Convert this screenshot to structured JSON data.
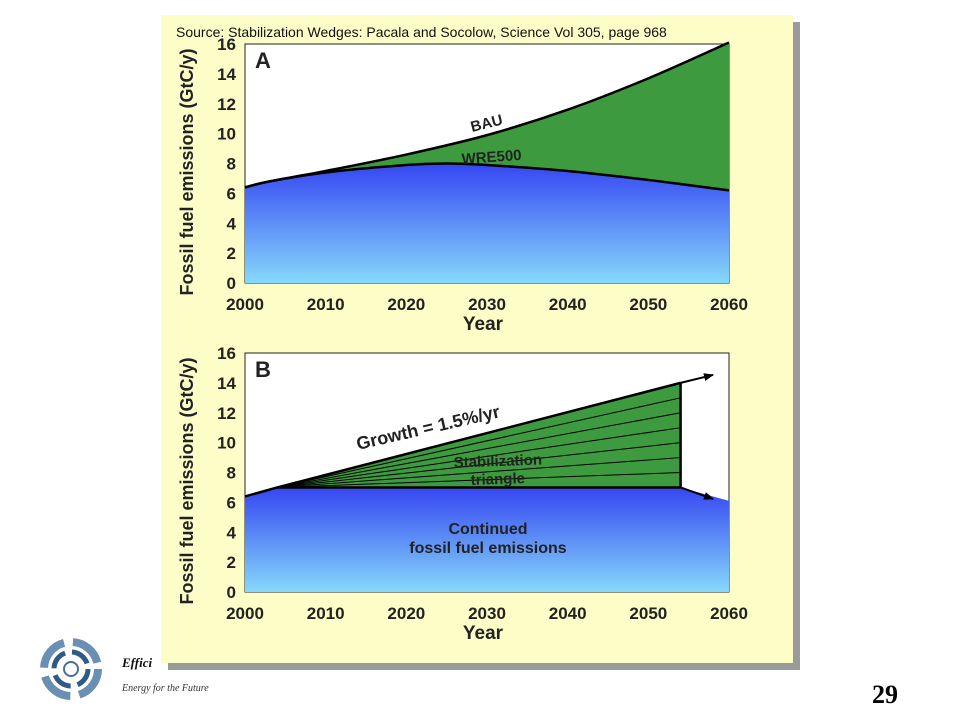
{
  "source": "Source: Stabilization Wedges: Pacala and Socolow, Science Vol 305, page 968",
  "footer": {
    "brand": "Effici",
    "tagline": "Energy for the Future",
    "slide_number": "29"
  },
  "chart_data": [
    {
      "type": "area",
      "panel_label": "A",
      "xlabel": "Year",
      "ylabel": "Fossil fuel emissions (GtC/y)",
      "xlim": [
        2000,
        2060
      ],
      "ylim": [
        0,
        16
      ],
      "x_ticks": [
        2000,
        2010,
        2020,
        2030,
        2040,
        2050,
        2060
      ],
      "y_ticks": [
        0,
        2,
        4,
        6,
        8,
        10,
        12,
        14,
        16
      ],
      "series": [
        {
          "name": "BAU",
          "color": "#3e9a3e",
          "x": [
            2000,
            2003,
            2010,
            2020,
            2030,
            2040,
            2050,
            2060
          ],
          "y": [
            6.4,
            6.8,
            7.5,
            8.6,
            9.9,
            11.6,
            13.7,
            16.1
          ]
        },
        {
          "name": "WRE500",
          "color": "#3a55f0",
          "x": [
            2000,
            2003,
            2010,
            2020,
            2025,
            2030,
            2040,
            2050,
            2060
          ],
          "y": [
            6.4,
            6.8,
            7.4,
            7.9,
            8.0,
            7.9,
            7.5,
            6.9,
            6.2
          ]
        }
      ]
    },
    {
      "type": "area",
      "panel_label": "B",
      "xlabel": "Year",
      "ylabel": "Fossil fuel emissions (GtC/y)",
      "xlim": [
        2000,
        2060
      ],
      "ylim": [
        0,
        16
      ],
      "x_ticks": [
        2000,
        2010,
        2020,
        2030,
        2040,
        2050,
        2060
      ],
      "y_ticks": [
        0,
        2,
        4,
        6,
        8,
        10,
        12,
        14,
        16
      ],
      "annotations": {
        "growth": "Growth = 1.5%/yr",
        "triangle_line1": "Stabilization",
        "triangle_line2": "triangle",
        "base_line1": "Continued",
        "base_line2": "fossil fuel emissions"
      },
      "growth_line": {
        "x": [
          2000,
          2004,
          2054
        ],
        "y": [
          6.4,
          7.0,
          14.0
        ]
      },
      "flat_line": {
        "x": [
          2004,
          2054
        ],
        "y": [
          7.0,
          7.0
        ]
      },
      "triangle_end_year": 2054,
      "wedge_count": 7,
      "arrow_growth_end": {
        "x": 2060,
        "y": 14.6
      },
      "arrow_flat_end": {
        "x": 2060,
        "y": 6.1
      }
    }
  ]
}
